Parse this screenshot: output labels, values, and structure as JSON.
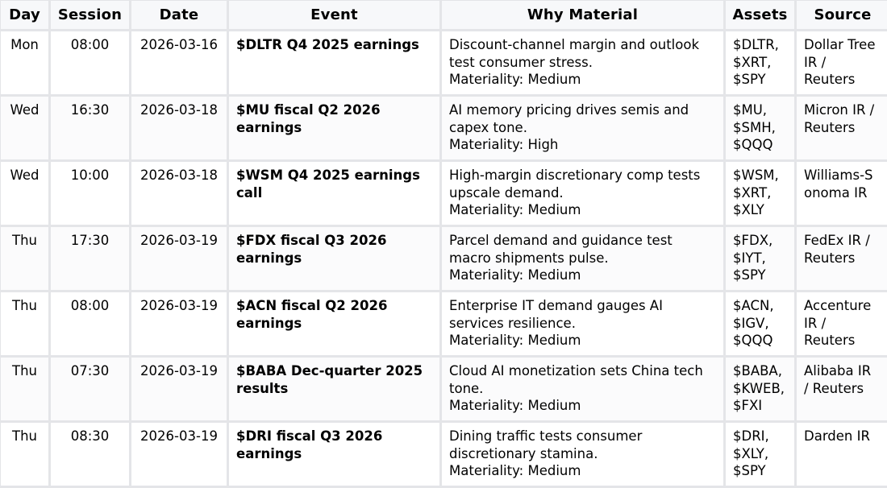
{
  "headers": {
    "day": "Day",
    "session": "Session",
    "date": "Date",
    "event": "Event",
    "why": "Why Material",
    "assets": "Assets",
    "source": "Source"
  },
  "rows": [
    {
      "day": "Mon",
      "session": "08:00",
      "date": "2026-03-16",
      "event": [
        "$DLTR Q4 2025 earnings"
      ],
      "why": [
        "Discount-channel margin and outlook",
        "test consumer stress.",
        "Materiality: Medium"
      ],
      "assets": [
        "$DLTR,",
        "$XRT,",
        "$SPY"
      ],
      "source": [
        "Dollar Tree",
        "IR /",
        "Reuters"
      ]
    },
    {
      "day": "Wed",
      "session": "16:30",
      "date": "2026-03-18",
      "event": [
        "$MU fiscal Q2 2026",
        "earnings"
      ],
      "why": [
        "AI memory pricing drives semis and",
        "capex tone.",
        "Materiality: High"
      ],
      "assets": [
        "$MU,",
        "$SMH,",
        "$QQQ"
      ],
      "source": [
        "Micron IR /",
        "Reuters"
      ]
    },
    {
      "day": "Wed",
      "session": "10:00",
      "date": "2026-03-18",
      "event": [
        "$WSM Q4 2025 earnings",
        "call"
      ],
      "why": [
        "High-margin discretionary comp tests",
        "upscale demand.",
        "Materiality: Medium"
      ],
      "assets": [
        "$WSM,",
        "$XRT,",
        "$XLY"
      ],
      "source": [
        "Williams-S",
        "onoma IR"
      ]
    },
    {
      "day": "Thu",
      "session": "17:30",
      "date": "2026-03-19",
      "event": [
        "$FDX fiscal Q3 2026",
        "earnings"
      ],
      "why": [
        "Parcel demand and guidance test",
        "macro shipments pulse.",
        "Materiality: Medium"
      ],
      "assets": [
        "$FDX,",
        "$IYT,",
        "$SPY"
      ],
      "source": [
        "FedEx IR /",
        "Reuters"
      ]
    },
    {
      "day": "Thu",
      "session": "08:00",
      "date": "2026-03-19",
      "event": [
        "$ACN fiscal Q2 2026",
        "earnings"
      ],
      "why": [
        "Enterprise IT demand gauges AI",
        "services resilience.",
        "Materiality: Medium"
      ],
      "assets": [
        "$ACN,",
        "$IGV,",
        "$QQQ"
      ],
      "source": [
        "Accenture",
        "IR /",
        "Reuters"
      ]
    },
    {
      "day": "Thu",
      "session": "07:30",
      "date": "2026-03-19",
      "event": [
        "$BABA Dec-quarter 2025",
        "results"
      ],
      "why": [
        "Cloud AI monetization sets China tech",
        "tone.",
        "Materiality: Medium"
      ],
      "assets": [
        "$BABA,",
        "$KWEB,",
        "$FXI"
      ],
      "source": [
        "Alibaba IR",
        "/ Reuters"
      ]
    },
    {
      "day": "Thu",
      "session": "08:30",
      "date": "2026-03-19",
      "event": [
        "$DRI fiscal Q3 2026",
        "earnings"
      ],
      "why": [
        "Dining traffic tests consumer",
        "discretionary stamina.",
        "Materiality: Medium"
      ],
      "assets": [
        "$DRI,",
        "$XLY,",
        "$SPY"
      ],
      "source": [
        "Darden IR"
      ]
    }
  ]
}
